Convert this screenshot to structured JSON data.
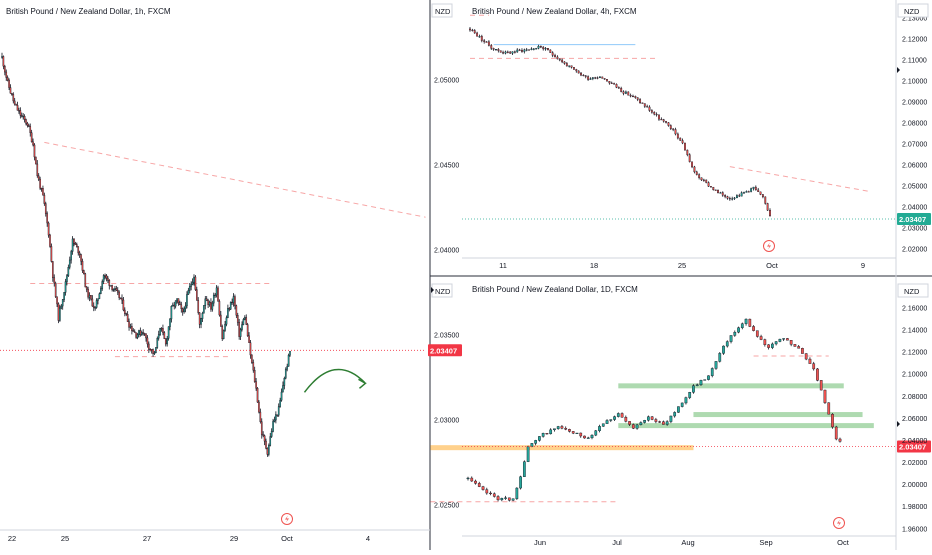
{
  "colors": {
    "up": "#26a69a",
    "down": "#ef5350",
    "wick": "#131722",
    "price_badge_red": "#f23645",
    "price_badge_green": "#22ab94",
    "trend_dash": "#f7a6a6",
    "zone_green": "#a5d6a7",
    "zone_orange": "#ffcc80",
    "zone_blue": "#bbdefb",
    "arrow": "#2e7d32",
    "axis_text": "#131722",
    "divider": "#2a2e39"
  },
  "icons": [
    "lightning-event-icon",
    "curved-arrow-icon",
    "chevron-right-icon"
  ],
  "chart_data": [
    {
      "id": "h1",
      "type": "candlestick",
      "title": "British Pound / New Zealand Dollar, 1h, FXCM",
      "symbol_unit": "",
      "x_ticks": [
        "22",
        "25",
        "27",
        "29",
        "Oct",
        "4"
      ],
      "y_ticks": [
        "2.05000",
        "2.04500",
        "2.04000",
        "2.03500",
        "2.03000",
        "2.02500"
      ],
      "ylim": [
        2.0235,
        2.0535
      ],
      "current_price": "2.03407",
      "current_price_value": 2.03407,
      "segments": [
        [
          0,
          2.0513
        ],
        [
          4,
          2.0498
        ],
        [
          9,
          2.0485
        ],
        [
          14,
          2.0478
        ],
        [
          18,
          2.0474
        ],
        [
          22,
          2.0462
        ],
        [
          25,
          2.0444
        ],
        [
          29,
          2.0431
        ],
        [
          33,
          2.041
        ],
        [
          36,
          2.0385
        ],
        [
          40,
          2.036
        ],
        [
          45,
          2.038
        ],
        [
          50,
          2.0405
        ],
        [
          55,
          2.0398
        ],
        [
          60,
          2.0375
        ],
        [
          66,
          2.0365
        ],
        [
          72,
          2.0385
        ],
        [
          78,
          2.0378
        ],
        [
          84,
          2.0371
        ],
        [
          90,
          2.0356
        ],
        [
          95,
          2.035
        ],
        [
          100,
          2.0352
        ],
        [
          104,
          2.0343
        ],
        [
          108,
          2.0338
        ],
        [
          112,
          2.0355
        ],
        [
          116,
          2.0344
        ],
        [
          120,
          2.0365
        ],
        [
          124,
          2.037
        ],
        [
          128,
          2.0362
        ],
        [
          132,
          2.0375
        ],
        [
          136,
          2.0385
        ],
        [
          140,
          2.0355
        ],
        [
          144,
          2.0372
        ],
        [
          148,
          2.0366
        ],
        [
          152,
          2.0378
        ],
        [
          156,
          2.0348
        ],
        [
          160,
          2.0364
        ],
        [
          164,
          2.0372
        ],
        [
          168,
          2.035
        ],
        [
          172,
          2.0361
        ],
        [
          176,
          2.0338
        ],
        [
          180,
          2.0318
        ],
        [
          184,
          2.0292
        ],
        [
          188,
          2.0281
        ],
        [
          192,
          2.0298
        ],
        [
          196,
          2.0306
        ],
        [
          200,
          2.0325
        ],
        [
          204,
          2.034
        ]
      ],
      "n_candles": 205,
      "annotations": [
        {
          "kind": "trendline",
          "from": [
            30,
            2.0463
          ],
          "to": [
            300,
            2.0419
          ]
        },
        {
          "kind": "hline",
          "from": 20,
          "to": 190,
          "y": 2.038
        },
        {
          "kind": "hline",
          "from": 80,
          "to": 160,
          "y": 2.0337
        },
        {
          "kind": "pointer-arrow",
          "at": [
            210,
            2.0316
          ]
        }
      ]
    },
    {
      "id": "h4",
      "type": "candlestick",
      "title": "British Pound / New Zealand Dollar, 4h, FXCM",
      "symbol_unit": "NZD",
      "x_ticks": [
        "11",
        "18",
        "25",
        "Oct",
        "9"
      ],
      "y_ticks": [
        "2.13000",
        "2.12000",
        "2.11000",
        "2.10000",
        "2.09000",
        "2.08000",
        "2.07000",
        "2.06000",
        "2.05000",
        "2.04000",
        "2.03000",
        "2.02000"
      ],
      "ylim": [
        2.0155,
        2.1335
      ],
      "current_price": "2.03407",
      "current_price_value": 2.03407,
      "n_candles": 128,
      "segments": [
        [
          0,
          2.1245
        ],
        [
          5,
          2.1195
        ],
        [
          10,
          2.115
        ],
        [
          15,
          2.113
        ],
        [
          20,
          2.114
        ],
        [
          25,
          2.1148
        ],
        [
          30,
          2.116
        ],
        [
          35,
          2.1125
        ],
        [
          40,
          2.108
        ],
        [
          45,
          2.104
        ],
        [
          50,
          2.101
        ],
        [
          55,
          2.102
        ],
        [
          60,
          2.0985
        ],
        [
          65,
          2.0945
        ],
        [
          70,
          2.0915
        ],
        [
          75,
          2.087
        ],
        [
          80,
          2.082
        ],
        [
          85,
          2.0775
        ],
        [
          90,
          2.07
        ],
        [
          95,
          2.056
        ],
        [
          100,
          2.051
        ],
        [
          105,
          2.0465
        ],
        [
          110,
          2.044
        ],
        [
          115,
          2.046
        ],
        [
          120,
          2.049
        ],
        [
          124,
          2.044
        ],
        [
          127,
          2.036
        ]
      ],
      "annotations": [
        {
          "kind": "trendline",
          "from": [
            110,
            2.059
          ],
          "to": [
            170,
            2.047
          ]
        },
        {
          "kind": "hline",
          "from": 0,
          "to": 8,
          "y": 2.131
        },
        {
          "kind": "hline",
          "from": 10,
          "to": 70,
          "y": 2.117,
          "zone": "blue"
        },
        {
          "kind": "hline",
          "from": 0,
          "to": 80,
          "y": 2.1105
        }
      ]
    },
    {
      "id": "d1",
      "type": "candlestick",
      "title": "British Pound / New Zealand Dollar, 1D, FXCM",
      "symbol_unit": "NZD",
      "x_ticks": [
        "Jun",
        "Jul",
        "Aug",
        "Sep",
        "Oct"
      ],
      "y_ticks": [
        "2.16000",
        "2.14000",
        "2.12000",
        "2.10000",
        "2.08000",
        "2.06000",
        "2.04000",
        "2.02000",
        "2.00000",
        "1.98000",
        "1.96000"
      ],
      "ylim": [
        1.953,
        2.174
      ],
      "current_price": "2.03407",
      "current_price_value": 2.03407,
      "n_candles": 100,
      "segments": [
        [
          0,
          2.005
        ],
        [
          4,
          1.994
        ],
        [
          8,
          1.987
        ],
        [
          12,
          1.986
        ],
        [
          14,
          2.008
        ],
        [
          16,
          2.033
        ],
        [
          20,
          2.045
        ],
        [
          24,
          2.052
        ],
        [
          28,
          2.046
        ],
        [
          32,
          2.042
        ],
        [
          36,
          2.056
        ],
        [
          40,
          2.063
        ],
        [
          44,
          2.05
        ],
        [
          48,
          2.062
        ],
        [
          52,
          2.053
        ],
        [
          56,
          2.07
        ],
        [
          60,
          2.088
        ],
        [
          64,
          2.098
        ],
        [
          68,
          2.126
        ],
        [
          72,
          2.142
        ],
        [
          74,
          2.15
        ],
        [
          76,
          2.138
        ],
        [
          80,
          2.124
        ],
        [
          84,
          2.132
        ],
        [
          88,
          2.122
        ],
        [
          92,
          2.105
        ],
        [
          96,
          2.064
        ],
        [
          98,
          2.042
        ],
        [
          100,
          2.034
        ]
      ],
      "annotations": [
        {
          "kind": "zone",
          "from": 40,
          "to": 100,
          "y": 2.089,
          "color": "green"
        },
        {
          "kind": "zone",
          "from": 60,
          "to": 105,
          "y": 2.063,
          "color": "green"
        },
        {
          "kind": "zone",
          "from": 40,
          "to": 108,
          "y": 2.053,
          "color": "green"
        },
        {
          "kind": "zone",
          "from": -10,
          "to": 60,
          "y": 2.033,
          "color": "orange"
        },
        {
          "kind": "hline",
          "from": -10,
          "to": 40,
          "y": 1.984
        },
        {
          "kind": "hline",
          "from": 76,
          "to": 96,
          "y": 2.116
        }
      ]
    }
  ]
}
